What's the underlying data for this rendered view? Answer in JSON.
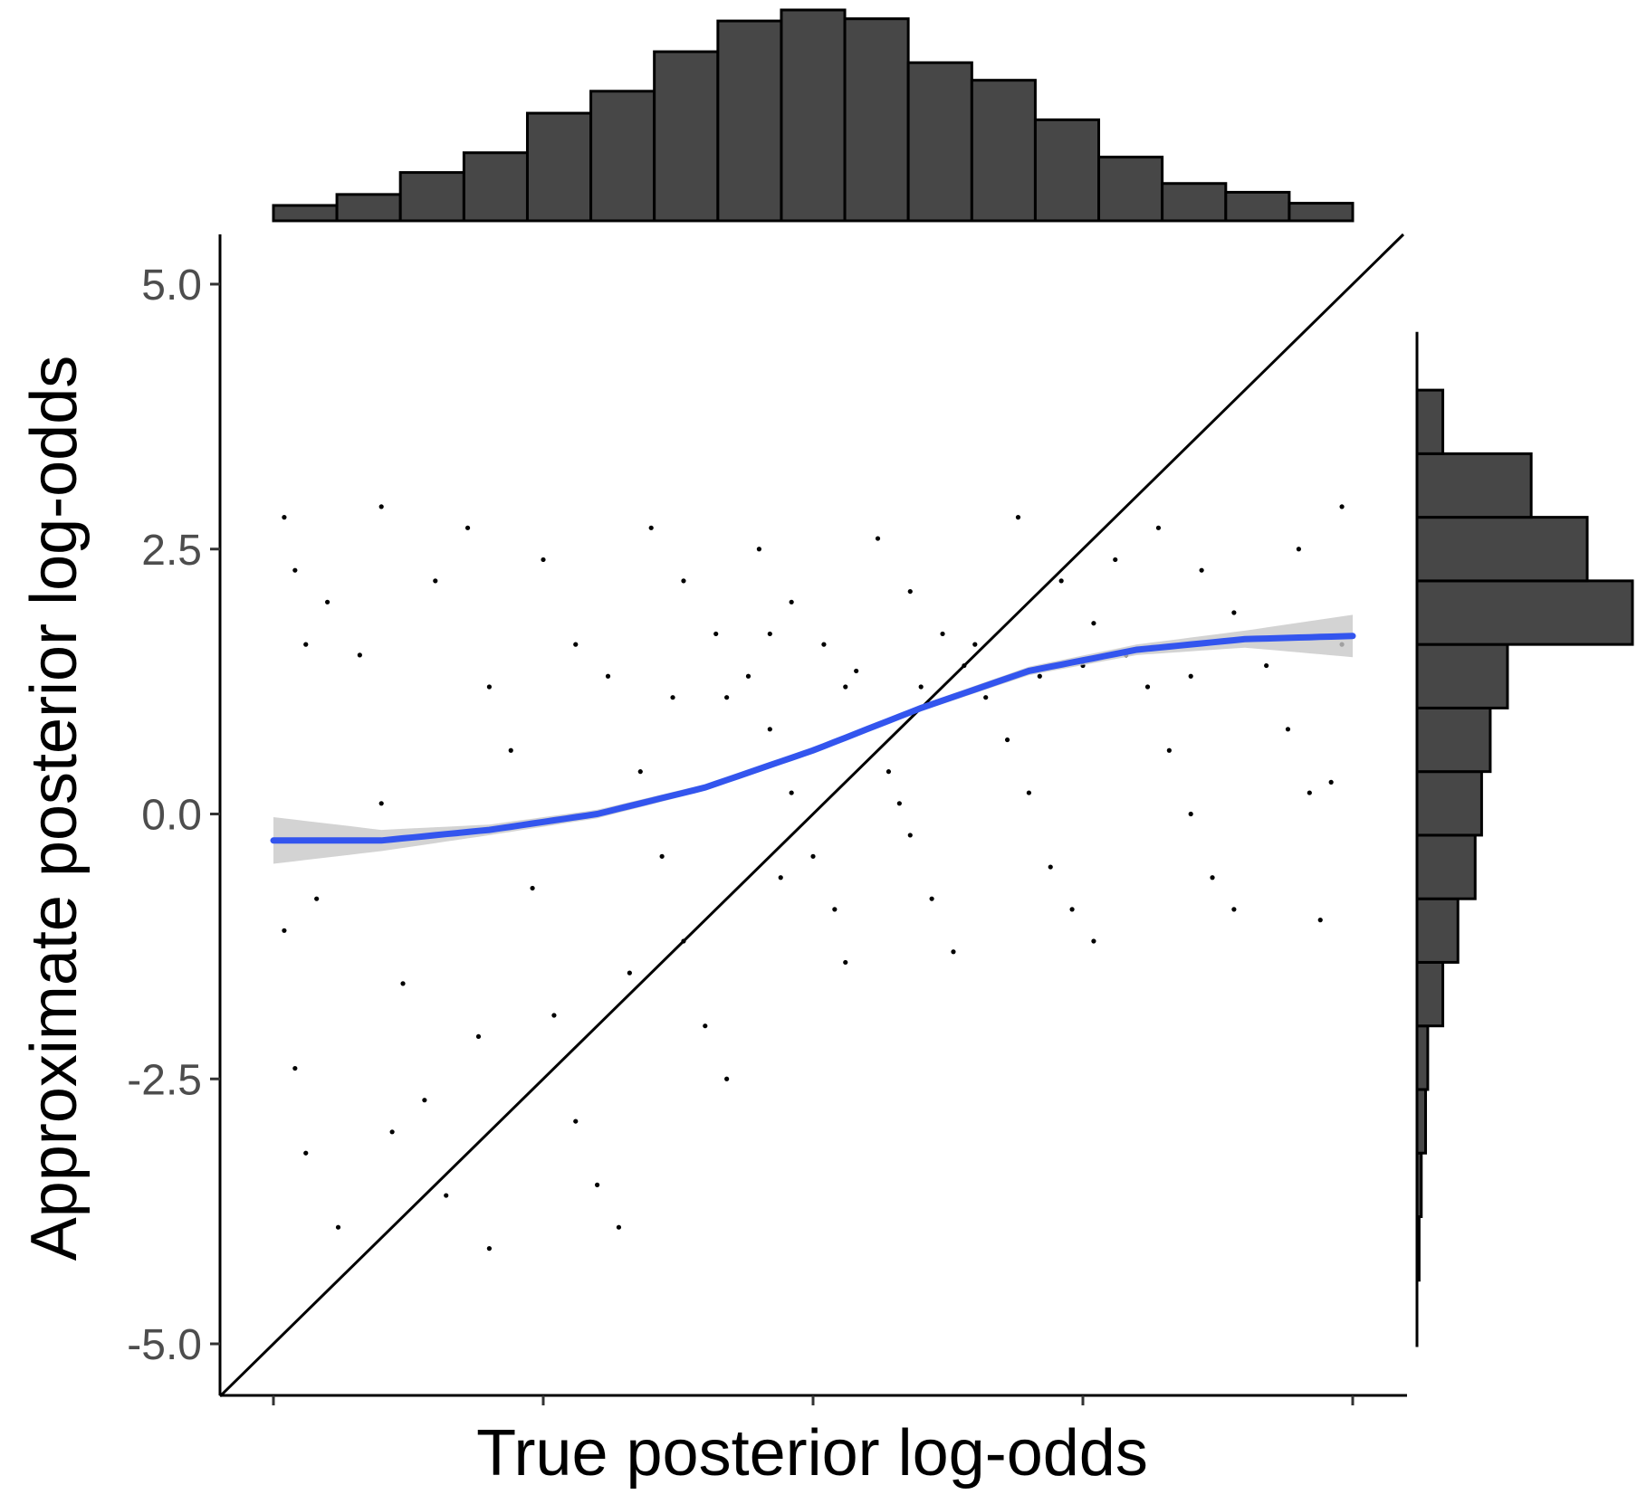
{
  "chart_data": {
    "type": "scatter",
    "xlabel": "True posterior log-odds",
    "ylabel": "Approximate posterior log-odds",
    "xlim": [
      -5,
      5
    ],
    "ylim": [
      -5.5,
      5.5
    ],
    "x_tick_values": [
      -5.0,
      -2.5,
      0.0,
      2.5,
      5.0
    ],
    "x_tick_labels_shown": false,
    "y_ticks": [
      {
        "value": 5.0,
        "label": "5.0"
      },
      {
        "value": 2.5,
        "label": "2.5"
      },
      {
        "value": 0.0,
        "label": "0.0"
      },
      {
        "value": -2.5,
        "label": "-2.5"
      },
      {
        "value": -5.0,
        "label": "-5.0"
      }
    ],
    "grid": false,
    "reference_line": {
      "description": "identity line y = x"
    },
    "smooth": {
      "x": [
        -5.0,
        -4.0,
        -3.0,
        -2.0,
        -1.0,
        0.0,
        1.0,
        2.0,
        3.0,
        4.0,
        5.0
      ],
      "y": [
        -0.25,
        -0.25,
        -0.15,
        0.0,
        0.25,
        0.6,
        1.0,
        1.35,
        1.55,
        1.65,
        1.68
      ],
      "ci_halfwidth": [
        0.22,
        0.1,
        0.05,
        0.04,
        0.03,
        0.03,
        0.03,
        0.04,
        0.05,
        0.08,
        0.2
      ],
      "color": "#3355ee",
      "ci_color": "#cccccc"
    },
    "scatter_sample": [
      [
        -4.9,
        2.8
      ],
      [
        -4.8,
        2.3
      ],
      [
        -4.7,
        1.6
      ],
      [
        -4.6,
        -0.8
      ],
      [
        -4.9,
        -1.1
      ],
      [
        -4.8,
        -2.4
      ],
      [
        -4.7,
        -3.2
      ],
      [
        -4.4,
        -3.9
      ],
      [
        -4.5,
        2.0
      ],
      [
        -4.2,
        1.5
      ],
      [
        -4.0,
        0.1
      ],
      [
        -3.8,
        -1.6
      ],
      [
        -3.6,
        -2.7
      ],
      [
        -3.4,
        -3.6
      ],
      [
        -3.0,
        -4.1
      ],
      [
        -3.2,
        2.7
      ],
      [
        -3.0,
        1.2
      ],
      [
        -2.8,
        0.6
      ],
      [
        -2.6,
        -0.7
      ],
      [
        -2.4,
        -1.9
      ],
      [
        -2.2,
        -2.9
      ],
      [
        -2.0,
        -3.5
      ],
      [
        -1.8,
        -3.9
      ],
      [
        -2.5,
        2.4
      ],
      [
        -2.2,
        1.6
      ],
      [
        -1.9,
        1.3
      ],
      [
        -1.6,
        0.4
      ],
      [
        -1.4,
        -0.4
      ],
      [
        -1.2,
        -1.2
      ],
      [
        -1.0,
        -2.0
      ],
      [
        -0.8,
        -2.5
      ],
      [
        -1.5,
        2.7
      ],
      [
        -1.2,
        2.2
      ],
      [
        -0.9,
        1.7
      ],
      [
        -0.6,
        1.3
      ],
      [
        -0.4,
        0.8
      ],
      [
        -0.2,
        0.2
      ],
      [
        0.0,
        -0.4
      ],
      [
        0.2,
        -0.9
      ],
      [
        0.3,
        -1.4
      ],
      [
        -0.5,
        2.5
      ],
      [
        -0.2,
        2.0
      ],
      [
        0.1,
        1.6
      ],
      [
        0.3,
        1.2
      ],
      [
        0.5,
        0.8
      ],
      [
        0.7,
        0.4
      ],
      [
        0.9,
        -0.2
      ],
      [
        1.1,
        -0.8
      ],
      [
        1.3,
        -1.3
      ],
      [
        0.6,
        2.6
      ],
      [
        0.9,
        2.1
      ],
      [
        1.2,
        1.7
      ],
      [
        1.4,
        1.4
      ],
      [
        1.6,
        1.1
      ],
      [
        1.8,
        0.7
      ],
      [
        2.0,
        0.2
      ],
      [
        2.2,
        -0.5
      ],
      [
        2.4,
        -0.9
      ],
      [
        2.6,
        -1.2
      ],
      [
        1.9,
        2.8
      ],
      [
        2.3,
        2.2
      ],
      [
        2.6,
        1.8
      ],
      [
        2.9,
        1.5
      ],
      [
        3.1,
        1.2
      ],
      [
        3.3,
        0.6
      ],
      [
        3.5,
        0.0
      ],
      [
        3.7,
        -0.6
      ],
      [
        3.9,
        -0.9
      ],
      [
        3.2,
        2.7
      ],
      [
        3.6,
        2.3
      ],
      [
        3.9,
        1.9
      ],
      [
        4.2,
        1.4
      ],
      [
        4.4,
        0.8
      ],
      [
        4.6,
        0.2
      ],
      [
        4.8,
        0.3
      ],
      [
        4.7,
        -1.0
      ],
      [
        4.5,
        2.5
      ],
      [
        4.9,
        1.6
      ],
      [
        4.9,
        2.9
      ],
      [
        -4.0,
        2.9
      ],
      [
        -3.5,
        2.2
      ],
      [
        -3.9,
        -3.0
      ],
      [
        -3.1,
        -2.1
      ],
      [
        -1.7,
        -1.5
      ],
      [
        -0.3,
        -0.6
      ],
      [
        0.8,
        0.1
      ],
      [
        2.1,
        1.3
      ],
      [
        2.8,
        2.4
      ],
      [
        3.5,
        1.3
      ],
      [
        -0.8,
        1.1
      ],
      [
        -1.3,
        1.1
      ],
      [
        -0.4,
        1.7
      ],
      [
        0.4,
        1.35
      ],
      [
        1.0,
        1.2
      ],
      [
        1.5,
        1.6
      ],
      [
        2.5,
        1.4
      ]
    ]
  },
  "top_histogram": {
    "bins": [
      {
        "x0": -5.0,
        "x1": -4.412,
        "count": 7
      },
      {
        "x0": -4.412,
        "x1": -3.824,
        "count": 12
      },
      {
        "x0": -3.824,
        "x1": -3.235,
        "count": 22
      },
      {
        "x0": -3.235,
        "x1": -2.647,
        "count": 31
      },
      {
        "x0": -2.647,
        "x1": -2.059,
        "count": 49
      },
      {
        "x0": -2.059,
        "x1": -1.471,
        "count": 59
      },
      {
        "x0": -1.471,
        "x1": -0.882,
        "count": 77
      },
      {
        "x0": -0.882,
        "x1": -0.294,
        "count": 91
      },
      {
        "x0": -0.294,
        "x1": 0.294,
        "count": 96
      },
      {
        "x0": 0.294,
        "x1": 0.882,
        "count": 92
      },
      {
        "x0": 0.882,
        "x1": 1.471,
        "count": 72
      },
      {
        "x0": 1.471,
        "x1": 2.059,
        "count": 64
      },
      {
        "x0": 2.059,
        "x1": 2.647,
        "count": 46
      },
      {
        "x0": 2.647,
        "x1": 3.235,
        "count": 29
      },
      {
        "x0": 3.235,
        "x1": 3.824,
        "count": 17
      },
      {
        "x0": 3.824,
        "x1": 4.412,
        "count": 13
      },
      {
        "x0": 4.412,
        "x1": 5.0,
        "count": 8
      }
    ],
    "fill": "#474747"
  },
  "right_histogram": {
    "bins": [
      {
        "y0": -4.4,
        "y1": -3.8,
        "count": 1
      },
      {
        "y0": -3.8,
        "y1": -3.2,
        "count": 2
      },
      {
        "y0": -3.2,
        "y1": -2.6,
        "count": 4
      },
      {
        "y0": -2.6,
        "y1": -2.0,
        "count": 5
      },
      {
        "y0": -2.0,
        "y1": -1.4,
        "count": 12
      },
      {
        "y0": -1.4,
        "y1": -0.8,
        "count": 19
      },
      {
        "y0": -0.8,
        "y1": -0.2,
        "count": 27
      },
      {
        "y0": -0.2,
        "y1": 0.4,
        "count": 30
      },
      {
        "y0": 0.4,
        "y1": 1.0,
        "count": 34
      },
      {
        "y0": 1.0,
        "y1": 1.6,
        "count": 42
      },
      {
        "y0": 1.6,
        "y1": 2.2,
        "count": 100
      },
      {
        "y0": 2.2,
        "y1": 2.8,
        "count": 79
      },
      {
        "y0": 2.8,
        "y1": 3.4,
        "count": 53
      },
      {
        "y0": 3.4,
        "y1": 4.0,
        "count": 12
      }
    ],
    "fill": "#474747"
  }
}
